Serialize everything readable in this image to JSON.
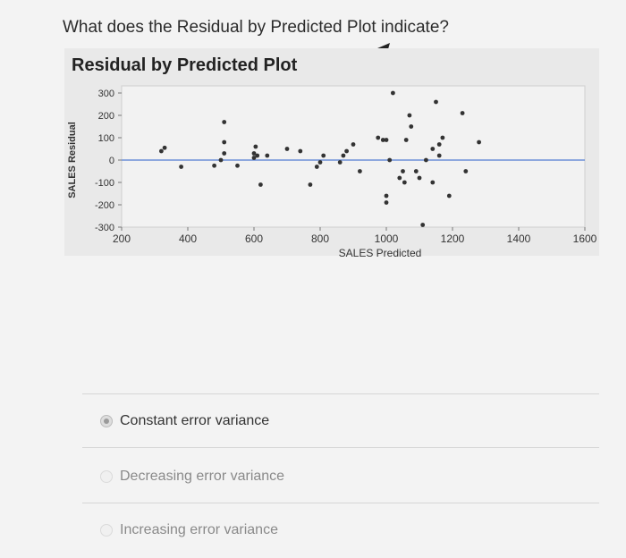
{
  "question": "What does the Residual by Predicted Plot indicate?",
  "chart_data": {
    "type": "scatter",
    "title": "Residual by Predicted Plot",
    "xlabel": "SALES Predicted",
    "ylabel": "SALES Residual",
    "xlim": [
      200,
      1600
    ],
    "ylim": [
      -300,
      300
    ],
    "x_ticks": [
      "200",
      "400",
      "600",
      "800",
      "1000",
      "1200",
      "1400",
      "1600"
    ],
    "y_ticks": [
      "300",
      "200",
      "100",
      "0",
      "-100",
      "-200",
      "-300"
    ],
    "reference_line": 0,
    "reference_color": "#6c8fd8",
    "point_color": "#333333",
    "points": [
      {
        "x": 320,
        "y": 40
      },
      {
        "x": 330,
        "y": 55
      },
      {
        "x": 380,
        "y": -30
      },
      {
        "x": 480,
        "y": -25
      },
      {
        "x": 500,
        "y": 0
      },
      {
        "x": 510,
        "y": 170
      },
      {
        "x": 510,
        "y": 80
      },
      {
        "x": 510,
        "y": 30
      },
      {
        "x": 550,
        "y": -25
      },
      {
        "x": 600,
        "y": 10
      },
      {
        "x": 600,
        "y": 30
      },
      {
        "x": 605,
        "y": 60
      },
      {
        "x": 610,
        "y": 20
      },
      {
        "x": 620,
        "y": -110
      },
      {
        "x": 640,
        "y": 20
      },
      {
        "x": 700,
        "y": 50
      },
      {
        "x": 740,
        "y": 40
      },
      {
        "x": 770,
        "y": -110
      },
      {
        "x": 790,
        "y": -30
      },
      {
        "x": 800,
        "y": -10
      },
      {
        "x": 810,
        "y": 20
      },
      {
        "x": 860,
        "y": -10
      },
      {
        "x": 870,
        "y": 20
      },
      {
        "x": 880,
        "y": 40
      },
      {
        "x": 900,
        "y": 70
      },
      {
        "x": 920,
        "y": -50
      },
      {
        "x": 975,
        "y": 100
      },
      {
        "x": 990,
        "y": 90
      },
      {
        "x": 1000,
        "y": 90
      },
      {
        "x": 1000,
        "y": -160
      },
      {
        "x": 1000,
        "y": -190
      },
      {
        "x": 1010,
        "y": 0
      },
      {
        "x": 1020,
        "y": 300
      },
      {
        "x": 1040,
        "y": -80
      },
      {
        "x": 1050,
        "y": -50
      },
      {
        "x": 1055,
        "y": -100
      },
      {
        "x": 1060,
        "y": 90
      },
      {
        "x": 1070,
        "y": 200
      },
      {
        "x": 1075,
        "y": 150
      },
      {
        "x": 1090,
        "y": -50
      },
      {
        "x": 1100,
        "y": -80
      },
      {
        "x": 1110,
        "y": -290
      },
      {
        "x": 1120,
        "y": 0
      },
      {
        "x": 1140,
        "y": 50
      },
      {
        "x": 1140,
        "y": -100
      },
      {
        "x": 1150,
        "y": 260
      },
      {
        "x": 1160,
        "y": 70
      },
      {
        "x": 1160,
        "y": 20
      },
      {
        "x": 1170,
        "y": 100
      },
      {
        "x": 1190,
        "y": -160
      },
      {
        "x": 1230,
        "y": 210
      },
      {
        "x": 1240,
        "y": -50
      },
      {
        "x": 1280,
        "y": 80
      }
    ]
  },
  "options": [
    {
      "label": "Constant error variance",
      "selected": true
    },
    {
      "label": "Decreasing error variance",
      "selected": false
    },
    {
      "label": "Increasing error variance",
      "selected": false
    }
  ]
}
